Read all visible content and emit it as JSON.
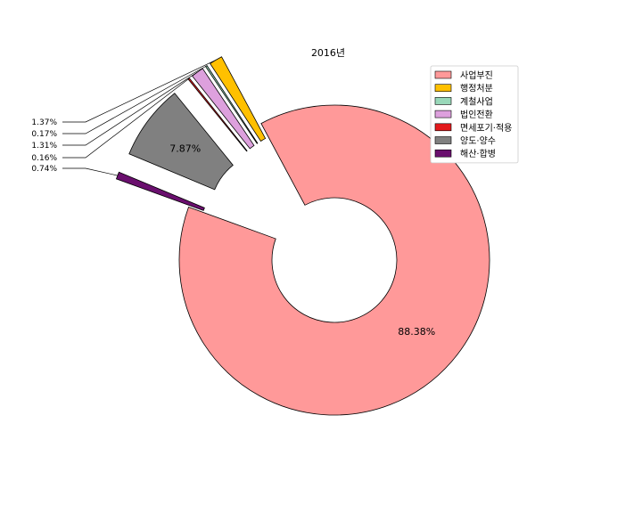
{
  "chart_data": {
    "type": "pie",
    "title": "2016년",
    "donut": true,
    "legend_position": "top-right",
    "slices": [
      {
        "label": "사업부진",
        "value": 88.38,
        "pct_label": "88.38%",
        "color": "#ff9999",
        "exploded": false
      },
      {
        "label": "행정처분",
        "value": 1.37,
        "pct_label": "1.37%",
        "color": "#ffc000",
        "exploded": true
      },
      {
        "label": "계철사업",
        "value": 0.17,
        "pct_label": "0.17%",
        "color": "#99d8b9",
        "exploded": true
      },
      {
        "label": "법인전환",
        "value": 1.31,
        "pct_label": "1.31%",
        "color": "#dda0dd",
        "exploded": true
      },
      {
        "label": "면세포기·적용",
        "value": 0.16,
        "pct_label": "0.16%",
        "color": "#e31a1c",
        "exploded": true
      },
      {
        "label": "양도·양수",
        "value": 7.87,
        "pct_label": "7.87%",
        "color": "#808080",
        "exploded": true
      },
      {
        "label": "해산·합병",
        "value": 0.74,
        "pct_label": "0.74%",
        "color": "#6a0f6e",
        "exploded": true
      }
    ]
  }
}
